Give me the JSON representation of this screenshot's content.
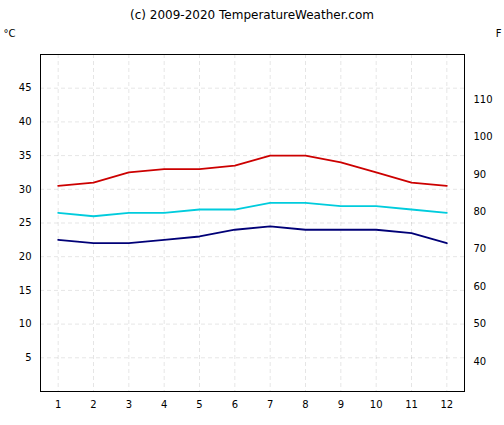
{
  "chart_data": {
    "type": "line",
    "title": "(c) 2009-2020 TemperatureWeather.com",
    "ylabel": "°C",
    "y2label": "F",
    "x": [
      1,
      2,
      3,
      4,
      5,
      6,
      7,
      8,
      9,
      10,
      11,
      12
    ],
    "xlim": [
      0.5,
      12.5
    ],
    "xticks": [
      1,
      2,
      3,
      4,
      5,
      6,
      7,
      8,
      9,
      10,
      11,
      12
    ],
    "ylim": [
      0,
      50
    ],
    "yticks": [
      5,
      10,
      15,
      20,
      25,
      30,
      35,
      40,
      45
    ],
    "y2lim": [
      32,
      122
    ],
    "y2ticks": [
      40,
      50,
      60,
      70,
      80,
      90,
      100,
      110
    ],
    "grid": true,
    "series": [
      {
        "color": "#cc0000",
        "values": [
          30.5,
          31.0,
          32.5,
          33.0,
          33.0,
          33.5,
          35.0,
          35.0,
          34.0,
          32.5,
          31.0,
          30.5
        ]
      },
      {
        "color": "#00ccdd",
        "values": [
          26.5,
          26.0,
          26.5,
          26.5,
          27.0,
          27.0,
          28.0,
          28.0,
          27.5,
          27.5,
          27.0,
          26.5
        ]
      },
      {
        "color": "#000077",
        "values": [
          22.5,
          22.0,
          22.0,
          22.5,
          23.0,
          24.0,
          24.5,
          24.0,
          24.0,
          24.0,
          23.5,
          22.0
        ]
      }
    ]
  }
}
